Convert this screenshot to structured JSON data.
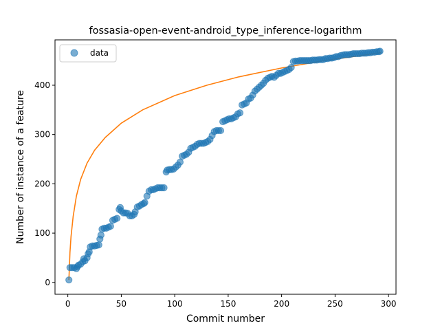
{
  "chart_data": {
    "type": "scatter",
    "title": "fossasia-open-event-android_type_inference-logarithm",
    "xlabel": "Commit number",
    "ylabel": "Number of instance of a feature",
    "xlim": [
      -12,
      307
    ],
    "ylim": [
      -24,
      492
    ],
    "xticks": [
      0,
      50,
      100,
      150,
      200,
      250,
      300
    ],
    "yticks": [
      0,
      100,
      200,
      300,
      400
    ],
    "grid": false,
    "legend": {
      "placement": "top-left",
      "entries": [
        "data"
      ]
    },
    "colors": {
      "data": "#1f77b4",
      "fit": "#ff7f0e"
    },
    "series": [
      {
        "name": "data",
        "kind": "scatter",
        "points": [
          [
            1,
            5
          ],
          [
            2,
            30
          ],
          [
            4,
            30
          ],
          [
            6,
            30
          ],
          [
            8,
            28
          ],
          [
            9,
            32
          ],
          [
            10,
            35
          ],
          [
            12,
            37
          ],
          [
            14,
            42
          ],
          [
            15,
            48
          ],
          [
            16,
            44
          ],
          [
            18,
            50
          ],
          [
            19,
            58
          ],
          [
            20,
            62
          ],
          [
            21,
            72
          ],
          [
            23,
            74
          ],
          [
            25,
            74
          ],
          [
            27,
            75
          ],
          [
            29,
            76
          ],
          [
            30,
            88
          ],
          [
            31,
            96
          ],
          [
            32,
            108
          ],
          [
            34,
            110
          ],
          [
            36,
            110
          ],
          [
            38,
            112
          ],
          [
            40,
            114
          ],
          [
            42,
            126
          ],
          [
            44,
            128
          ],
          [
            46,
            130
          ],
          [
            48,
            148
          ],
          [
            49,
            152
          ],
          [
            50,
            145
          ],
          [
            52,
            141
          ],
          [
            54,
            141
          ],
          [
            56,
            140
          ],
          [
            58,
            135
          ],
          [
            60,
            135
          ],
          [
            62,
            138
          ],
          [
            63,
            143
          ],
          [
            65,
            153
          ],
          [
            67,
            155
          ],
          [
            69,
            158
          ],
          [
            71,
            160
          ],
          [
            72,
            162
          ],
          [
            74,
            175
          ],
          [
            76,
            185
          ],
          [
            78,
            188
          ],
          [
            80,
            188
          ],
          [
            82,
            190
          ],
          [
            84,
            192
          ],
          [
            86,
            192
          ],
          [
            88,
            192
          ],
          [
            90,
            192
          ],
          [
            92,
            224
          ],
          [
            93,
            228
          ],
          [
            95,
            229
          ],
          [
            97,
            229
          ],
          [
            99,
            230
          ],
          [
            101,
            234
          ],
          [
            103,
            238
          ],
          [
            105,
            244
          ],
          [
            107,
            256
          ],
          [
            109,
            258
          ],
          [
            111,
            260
          ],
          [
            113,
            264
          ],
          [
            115,
            272
          ],
          [
            117,
            274
          ],
          [
            119,
            276
          ],
          [
            121,
            280
          ],
          [
            123,
            282
          ],
          [
            125,
            282
          ],
          [
            127,
            282
          ],
          [
            129,
            284
          ],
          [
            131,
            286
          ],
          [
            133,
            290
          ],
          [
            135,
            298
          ],
          [
            137,
            306
          ],
          [
            139,
            308
          ],
          [
            141,
            308
          ],
          [
            143,
            308
          ],
          [
            145,
            326
          ],
          [
            147,
            328
          ],
          [
            149,
            330
          ],
          [
            151,
            332
          ],
          [
            153,
            332
          ],
          [
            155,
            334
          ],
          [
            157,
            336
          ],
          [
            159,
            342
          ],
          [
            161,
            344
          ],
          [
            163,
            360
          ],
          [
            165,
            362
          ],
          [
            167,
            364
          ],
          [
            169,
            372
          ],
          [
            171,
            374
          ],
          [
            173,
            380
          ],
          [
            175,
            388
          ],
          [
            177,
            392
          ],
          [
            179,
            396
          ],
          [
            181,
            400
          ],
          [
            183,
            404
          ],
          [
            185,
            410
          ],
          [
            187,
            414
          ],
          [
            189,
            416
          ],
          [
            191,
            418
          ],
          [
            193,
            416
          ],
          [
            195,
            420
          ],
          [
            197,
            424
          ],
          [
            199,
            424
          ],
          [
            201,
            426
          ],
          [
            203,
            428
          ],
          [
            205,
            430
          ],
          [
            207,
            432
          ],
          [
            209,
            436
          ],
          [
            211,
            448
          ],
          [
            213,
            449
          ],
          [
            215,
            449
          ],
          [
            217,
            450
          ],
          [
            219,
            450
          ],
          [
            221,
            450
          ],
          [
            223,
            450
          ],
          [
            225,
            450
          ],
          [
            227,
            450
          ],
          [
            229,
            451
          ],
          [
            231,
            451
          ],
          [
            233,
            451
          ],
          [
            235,
            452
          ],
          [
            237,
            452
          ],
          [
            239,
            452
          ],
          [
            241,
            454
          ],
          [
            243,
            454
          ],
          [
            245,
            455
          ],
          [
            247,
            455
          ],
          [
            249,
            456
          ],
          [
            251,
            458
          ],
          [
            253,
            458
          ],
          [
            255,
            460
          ],
          [
            257,
            461
          ],
          [
            259,
            462
          ],
          [
            261,
            462
          ],
          [
            263,
            462
          ],
          [
            265,
            463
          ],
          [
            267,
            464
          ],
          [
            269,
            464
          ],
          [
            271,
            464
          ],
          [
            273,
            464
          ],
          [
            275,
            465
          ],
          [
            277,
            465
          ],
          [
            279,
            465
          ],
          [
            281,
            466
          ],
          [
            283,
            466
          ],
          [
            285,
            467
          ],
          [
            287,
            467
          ],
          [
            289,
            468
          ],
          [
            291,
            468
          ],
          [
            292,
            469
          ]
        ]
      },
      {
        "kind": "line",
        "x": [
          1,
          2,
          3,
          5,
          8,
          12,
          18,
          25,
          35,
          50,
          70,
          100,
          130,
          160,
          200,
          240,
          270,
          293
        ],
        "y": [
          5,
          61,
          93,
          134,
          175,
          209,
          242,
          268,
          294,
          323,
          350,
          379,
          400,
          417,
          435,
          450,
          459,
          466
        ]
      }
    ]
  }
}
